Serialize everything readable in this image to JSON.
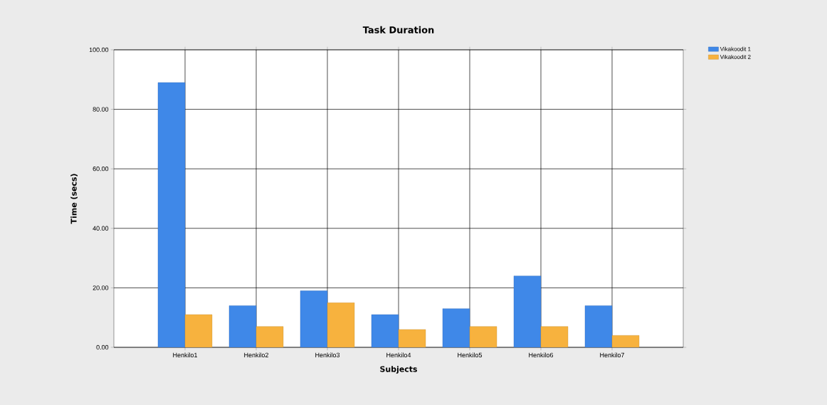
{
  "chart_data": {
    "type": "bar",
    "title": "Task Duration",
    "xlabel": "Subjects",
    "ylabel": "Time (secs)",
    "categories": [
      "Henkilo1",
      "Henkilo2",
      "Henkilo3",
      "Henkilo4",
      "Henkilo5",
      "Henkilo6",
      "Henkilo7"
    ],
    "series": [
      {
        "name": "Vikakoodit 1",
        "color": "#3f88e8",
        "values": [
          89,
          14,
          19,
          11,
          13,
          24,
          14
        ]
      },
      {
        "name": "Vikakoodit 2",
        "color": "#f7b23e",
        "values": [
          11,
          7,
          15,
          6,
          7,
          7,
          4
        ]
      }
    ],
    "ylim": [
      0,
      100
    ],
    "yticks": [
      {
        "value": 0,
        "label": "0.00"
      },
      {
        "value": 20,
        "label": "20.00"
      },
      {
        "value": 40,
        "label": "40.00"
      },
      {
        "value": 60,
        "label": "60.00"
      },
      {
        "value": 80,
        "label": "80.00"
      },
      {
        "value": 100,
        "label": "100.00"
      }
    ],
    "grid": true,
    "legend": "top right"
  }
}
